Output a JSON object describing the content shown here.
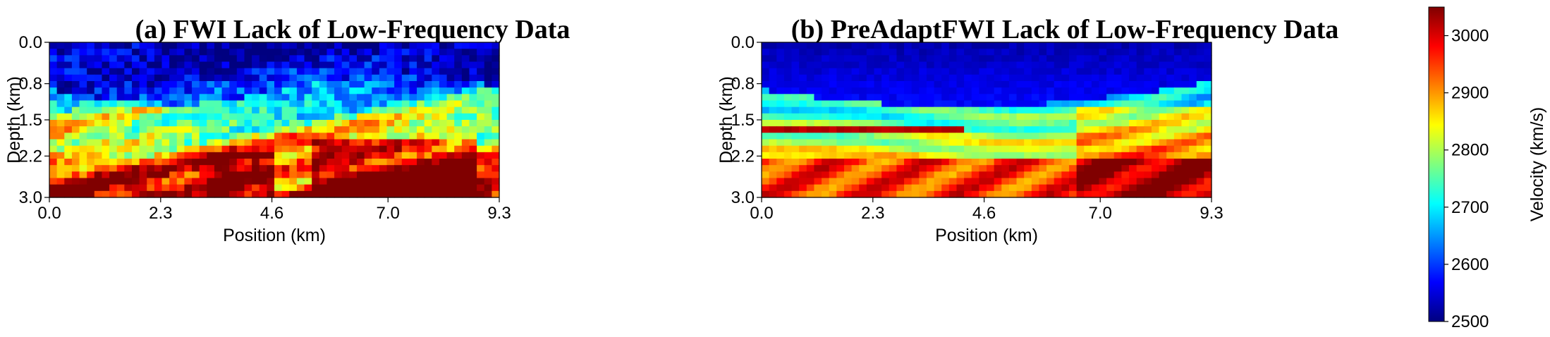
{
  "chart_data": [
    {
      "type": "heatmap",
      "panel": "a",
      "title": "(a) FWI Lack of Low-Frequency Data",
      "xlabel": "Position (km)",
      "ylabel": "Depth (km)",
      "xlim": [
        0.0,
        9.3
      ],
      "ylim": [
        3.0,
        0.0
      ],
      "xticks": [
        0.0,
        2.3,
        4.6,
        7.0,
        9.3
      ],
      "xtick_labels": [
        "0.0",
        "2.3",
        "4.6",
        "7.0",
        "9.3"
      ],
      "yticks": [
        0.0,
        0.8,
        1.5,
        2.2,
        3.0
      ],
      "ytick_labels": [
        "0.0",
        "0.8",
        "1.5",
        "2.2",
        "3.0"
      ],
      "colormap": "jet",
      "description_of_field": "Noisy velocity model; low velocities (~2500 m/s) near surface, fragmented high-velocity zones at depth"
    },
    {
      "type": "heatmap",
      "panel": "b",
      "title": "(b) PreAdaptFWI Lack of Low-Frequency Data",
      "xlabel": "Position (km)",
      "ylabel": "Depth (km)",
      "xlim": [
        0.0,
        9.3
      ],
      "ylim": [
        3.0,
        0.0
      ],
      "xticks": [
        0.0,
        2.3,
        4.6,
        7.0,
        9.3
      ],
      "xtick_labels": [
        "0.0",
        "2.3",
        "4.6",
        "7.0",
        "9.3"
      ],
      "yticks": [
        0.0,
        0.8,
        1.5,
        2.2,
        3.0
      ],
      "ytick_labels": [
        "0.0",
        "0.8",
        "1.5",
        "2.2",
        "3.0"
      ],
      "colormap": "jet",
      "description_of_field": "Smooth layered velocity model with curved layers and faults; high velocities (~3000 m/s) at depth"
    }
  ],
  "colorbar": {
    "label": "Velocity (km/s)",
    "min": 2500,
    "max": 3050,
    "ticks": [
      2500,
      2600,
      2700,
      2800,
      2900,
      3000
    ],
    "tick_labels": [
      "2500",
      "2600",
      "2700",
      "2800",
      "2900",
      "3000"
    ],
    "colormap": "jet"
  },
  "colors": {
    "jet_stops": [
      "#00007f",
      "#0000ff",
      "#007fff",
      "#00ffff",
      "#7fff7f",
      "#ffff00",
      "#ff7f00",
      "#ff0000",
      "#7f0000"
    ]
  }
}
